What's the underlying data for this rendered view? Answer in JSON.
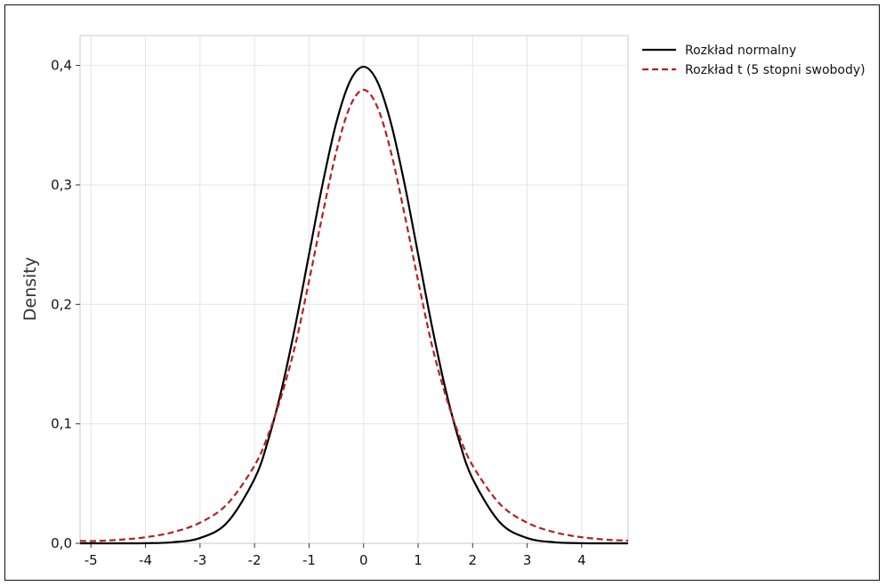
{
  "chart_data": {
    "type": "line",
    "title": "",
    "xlabel": "",
    "ylabel": "Density",
    "xlim": [
      -5.2,
      4.85
    ],
    "ylim": [
      0,
      0.425
    ],
    "xticks": [
      -5,
      -4,
      -3,
      -2,
      -1,
      0,
      1,
      2,
      3,
      4
    ],
    "xtick_labels": [
      "-5",
      "-4",
      "-3",
      "-2",
      "-1",
      "0",
      "1",
      "2",
      "3",
      "4"
    ],
    "yticks": [
      0,
      0.1,
      0.2,
      0.3,
      0.4
    ],
    "ytick_labels": [
      "0,0",
      "0,1",
      "0,2",
      "0,3",
      "0,4"
    ],
    "grid": true,
    "legend_position": "outside-top-right",
    "x": [
      -5.2,
      -5,
      -4.5,
      -4,
      -3.5,
      -3,
      -2.5,
      -2,
      -1.75,
      -1.5,
      -1.25,
      -1,
      -0.75,
      -0.5,
      -0.25,
      0,
      0.25,
      0.5,
      0.75,
      1,
      1.25,
      1.5,
      1.75,
      2,
      2.5,
      3,
      3.5,
      4,
      4.5,
      4.85
    ],
    "series": [
      {
        "name": "Rozkład normalny",
        "color": "#000000",
        "style": "solid",
        "values": [
          0.0,
          0.0,
          0.0,
          0.0001,
          0.0009,
          0.0044,
          0.0175,
          0.054,
          0.0863,
          0.1295,
          0.1826,
          0.242,
          0.3011,
          0.3521,
          0.3867,
          0.3989,
          0.3867,
          0.3521,
          0.3011,
          0.242,
          0.1826,
          0.1295,
          0.0863,
          0.054,
          0.0175,
          0.0044,
          0.0009,
          0.0001,
          0.0,
          0.0
        ]
      },
      {
        "name": "Rozkład t (5 stopni swobody)",
        "color": "#b22222",
        "style": "dashed",
        "values": [
          0.0021,
          0.0018,
          0.0029,
          0.0051,
          0.0093,
          0.0173,
          0.0329,
          0.0651,
          0.0907,
          0.1245,
          0.1665,
          0.2197,
          0.2757,
          0.3279,
          0.3655,
          0.3796,
          0.3655,
          0.3279,
          0.2757,
          0.2197,
          0.1665,
          0.1245,
          0.0907,
          0.0651,
          0.0329,
          0.0173,
          0.0093,
          0.0051,
          0.0029,
          0.0023
        ]
      }
    ]
  }
}
